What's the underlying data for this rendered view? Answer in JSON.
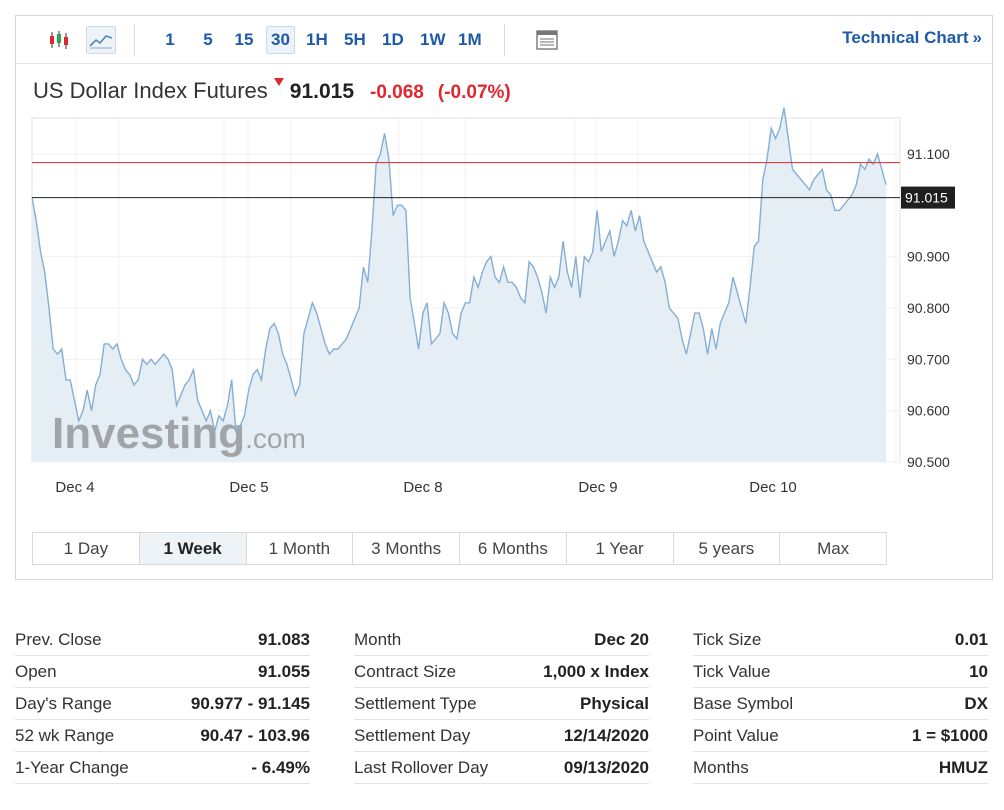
{
  "toolbar": {
    "icons": [
      "candlestick-chart-icon",
      "line-chart-icon",
      "table-view-icon"
    ],
    "timeframes": [
      "1",
      "5",
      "15",
      "30",
      "1H",
      "5H",
      "1D",
      "1W",
      "1M"
    ],
    "active_timeframe": "30",
    "technical_chart_label": "Technical Chart",
    "technical_chart_arrow": "»"
  },
  "instrument": {
    "name": "US Dollar Index Futures",
    "last": "91.015",
    "change": "-0.068",
    "change_pct": "(-0.07%)",
    "direction": "down"
  },
  "watermark": {
    "brand": "Investing",
    "suffix": ".com"
  },
  "colors": {
    "accent": "#1e5aa8",
    "negative": "#e0262e",
    "line": "#84aed3",
    "area": "#e6eef5",
    "ref_line": "#e0262e",
    "current_line": "#222222"
  },
  "chart_data": {
    "type": "area",
    "y_axis": {
      "min": 90.5,
      "max": 91.17,
      "ticks": [
        "91.100",
        "90.900",
        "90.800",
        "90.700",
        "90.600",
        "90.500"
      ]
    },
    "x_ticks": [
      "Dec 4",
      "Dec 5",
      "Dec 8",
      "Dec 9",
      "Dec 10"
    ],
    "prev_close_line": 91.083,
    "current_line": 91.015,
    "current_label": "91.015",
    "series": [
      {
        "values": [
          91.015,
          90.97,
          90.91,
          90.87,
          90.8,
          90.72,
          90.71,
          90.72,
          90.66,
          90.66,
          90.62,
          90.58,
          90.6,
          90.64,
          90.6,
          90.65,
          90.67,
          90.73,
          90.73,
          90.72,
          90.73,
          90.7,
          90.68,
          90.67,
          90.65,
          90.66,
          90.7,
          90.69,
          90.7,
          90.69,
          90.7,
          90.71,
          90.7,
          90.68,
          90.61,
          90.63,
          90.65,
          90.66,
          90.68,
          90.62,
          90.6,
          90.58,
          90.6,
          90.56,
          90.59,
          90.58,
          90.61,
          90.66,
          90.56,
          90.57,
          90.59,
          90.64,
          90.67,
          90.68,
          90.66,
          90.72,
          90.76,
          90.77,
          90.75,
          90.71,
          90.69,
          90.66,
          90.63,
          90.65,
          90.75,
          90.78,
          90.81,
          90.79,
          90.76,
          90.73,
          90.71,
          90.72,
          90.72,
          90.73,
          90.74,
          90.76,
          90.78,
          90.8,
          90.88,
          90.85,
          90.95,
          91.08,
          91.1,
          91.14,
          91.09,
          90.98,
          91.0,
          91.0,
          90.99,
          90.82,
          90.77,
          90.72,
          90.79,
          90.81,
          90.73,
          90.74,
          90.75,
          90.81,
          90.79,
          90.75,
          90.74,
          90.79,
          90.81,
          90.81,
          90.86,
          90.84,
          90.87,
          90.89,
          90.9,
          90.86,
          90.85,
          90.88,
          90.85,
          90.85,
          90.84,
          90.82,
          90.81,
          90.89,
          90.88,
          90.86,
          90.83,
          90.79,
          90.86,
          90.84,
          90.86,
          90.93,
          90.87,
          90.84,
          90.9,
          90.82,
          90.9,
          90.89,
          90.91,
          90.99,
          90.91,
          90.93,
          90.95,
          90.9,
          90.93,
          90.97,
          90.96,
          90.99,
          90.95,
          90.98,
          90.93,
          90.91,
          90.89,
          90.87,
          90.88,
          90.85,
          90.8,
          90.79,
          90.78,
          90.74,
          90.71,
          90.75,
          90.79,
          90.79,
          90.76,
          90.71,
          90.76,
          90.72,
          90.77,
          90.79,
          90.81,
          90.86,
          90.83,
          90.8,
          90.77,
          90.84,
          90.92,
          90.93,
          91.05,
          91.09,
          91.15,
          91.13,
          91.15,
          91.19,
          91.13,
          91.07,
          91.06,
          91.05,
          91.04,
          91.03,
          91.05,
          91.06,
          91.07,
          91.03,
          91.02,
          90.99,
          90.99,
          91.0,
          91.01,
          91.02,
          91.04,
          91.08,
          91.07,
          91.09,
          91.08,
          91.1,
          91.07,
          91.04
        ]
      }
    ]
  },
  "periods": [
    "1 Day",
    "1 Week",
    "1 Month",
    "3 Months",
    "6 Months",
    "1 Year",
    "5 years",
    "Max"
  ],
  "active_period": "1 Week",
  "stats": {
    "col1": [
      {
        "k": "Prev. Close",
        "v": "91.083"
      },
      {
        "k": "Open",
        "v": "91.055"
      },
      {
        "k": "Day's Range",
        "v": "90.977 - 91.145"
      },
      {
        "k": "52 wk Range",
        "v": "90.47 - 103.96"
      },
      {
        "k": "1-Year Change",
        "v": "- 6.49%"
      }
    ],
    "col2": [
      {
        "k": "Month",
        "v": "Dec 20"
      },
      {
        "k": "Contract Size",
        "v": "1,000 x Index"
      },
      {
        "k": "Settlement Type",
        "v": "Physical"
      },
      {
        "k": "Settlement Day",
        "v": "12/14/2020"
      },
      {
        "k": "Last Rollover Day",
        "v": "09/13/2020"
      }
    ],
    "col3": [
      {
        "k": "Tick Size",
        "v": "0.01"
      },
      {
        "k": "Tick Value",
        "v": "10"
      },
      {
        "k": "Base Symbol",
        "v": "DX"
      },
      {
        "k": "Point Value",
        "v": "1 = $1000"
      },
      {
        "k": "Months",
        "v": "HMUZ"
      }
    ]
  }
}
